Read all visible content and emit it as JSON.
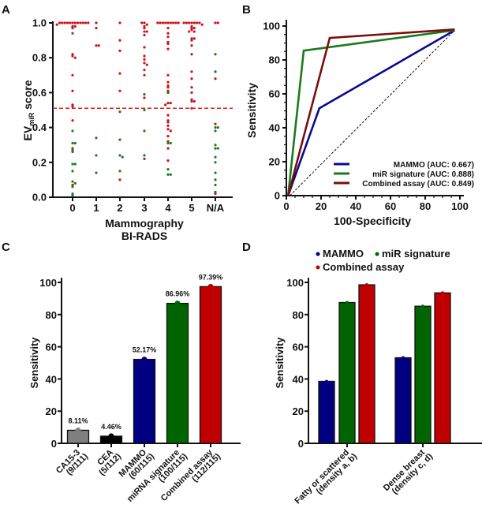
{
  "chart_data": [
    {
      "panel": "A",
      "type": "scatter",
      "title": "",
      "xlabel": [
        "Mammography",
        "BI-RADS"
      ],
      "ylabel_main": "EV",
      "ylabel_sub": "miR",
      "ylabel_tail": " score",
      "categories": [
        "0",
        "1",
        "2",
        "3",
        "4",
        "5",
        "N/A"
      ],
      "yticks": [
        "0.0",
        "0.2",
        "0.4",
        "0.6",
        "0.8",
        "1.0"
      ],
      "ylim": [
        0,
        1
      ],
      "threshold": 0.51,
      "colors": {
        "red": "#c8141c",
        "green": "#1e7a1e",
        "threshold": "#e51c1c"
      },
      "series": [
        {
          "category": "0",
          "red": [
            1,
            1,
            1,
            1,
            1,
            1,
            1,
            1,
            1,
            1,
            1,
            1,
            0.99,
            0.98,
            0.98,
            0.97,
            0.82,
            0.81,
            0.8,
            0.7,
            0.61,
            0.53,
            0.52,
            0.44,
            0.28,
            0.07
          ],
          "green": [
            0.94,
            0.38,
            0.31,
            0.31,
            0.27,
            0.26,
            0.19,
            0.19,
            0.15,
            0.09,
            0.08,
            0.06,
            0.02,
            0.01
          ]
        },
        {
          "category": "1",
          "red": [
            1,
            0.97,
            0.87,
            0.87
          ],
          "green": [
            0.34,
            0.24,
            0.14
          ]
        },
        {
          "category": "2",
          "red": [
            1,
            0.9,
            0.84,
            0.71,
            0.61,
            0.1
          ],
          "green": [
            0.49,
            0.33,
            0.24,
            0.23,
            0.15
          ]
        },
        {
          "category": "3",
          "red": [
            1,
            0.99,
            1,
            0.98,
            0.97,
            0.95,
            0.95,
            0.93,
            0.86,
            0.81,
            0.79,
            0.77,
            0.76,
            0.73,
            0.7,
            0.57,
            0.22
          ],
          "green": [
            0.59,
            0.5,
            0.38,
            0.24
          ]
        },
        {
          "category": "4",
          "red": [
            1,
            1,
            1,
            1,
            1,
            1,
            1,
            1,
            1,
            0.97,
            0.94,
            0.92,
            0.89,
            0.88,
            0.85,
            0.7,
            0.66,
            0.64,
            0.63,
            0.61,
            0.6,
            0.54,
            0.54,
            0.53,
            0.47,
            0.44,
            0.43,
            0.41,
            0.39,
            0.38,
            0.35,
            0.32,
            0.28,
            0.21
          ],
          "green": [
            0.6,
            0.31,
            0.31,
            0.16,
            0.13,
            0.13
          ]
        },
        {
          "category": "5",
          "red": [
            1,
            1,
            1,
            1,
            1,
            1,
            1,
            0.99,
            0.98,
            0.97,
            0.97,
            0.96,
            0.95,
            0.95,
            0.91,
            0.91,
            0.9,
            0.87,
            0.82,
            0.72,
            0.68,
            0.63,
            0.6,
            0.56,
            0.55,
            0.55,
            0.51
          ],
          "green": []
        },
        {
          "category": "N/A",
          "red": [
            1,
            1,
            0.68,
            0.42,
            0.02
          ],
          "green": [
            0.82,
            0.72,
            0.4,
            0.4,
            0.38,
            0.3,
            0.28,
            0.28,
            0.23,
            0.2,
            0.14,
            0.1,
            0.07,
            0.03
          ]
        }
      ]
    },
    {
      "panel": "B",
      "type": "line",
      "xlabel": "100-Specificity",
      "ylabel": "Sensitivity",
      "xlim": [
        0,
        100
      ],
      "ylim": [
        0,
        100
      ],
      "xticks": [
        "0",
        "20",
        "40",
        "60",
        "80",
        "100"
      ],
      "yticks": [
        "0",
        "20",
        "40",
        "60",
        "80",
        "100"
      ],
      "legend_position": "bottom-right",
      "reference_line": {
        "x": [
          2,
          97
        ],
        "y": [
          0,
          97.5
        ]
      },
      "series": [
        {
          "name": "MAMMO (AUC: 0.667)",
          "color": "#0a0a8c",
          "x": [
            1,
            19,
            97
          ],
          "y": [
            0,
            51.5,
            97.5
          ]
        },
        {
          "name": "miR signature (AUC: 0.888)",
          "color": "#1b7a1b",
          "x": [
            1,
            10,
            97
          ],
          "y": [
            0,
            85.5,
            97.5
          ]
        },
        {
          "name": "Combined assay (AUC: 0.849)",
          "color": "#7a0d0d",
          "x": [
            1,
            25,
            97
          ],
          "y": [
            0,
            93,
            98
          ]
        }
      ]
    },
    {
      "panel": "C",
      "type": "bar",
      "ylabel": "Sensitivity",
      "ylim": [
        0,
        100
      ],
      "yticks": [
        "0",
        "20",
        "40",
        "60",
        "80",
        "100"
      ],
      "categories": [
        [
          "CA15-3",
          "(9/111)"
        ],
        [
          "CEA",
          "(5/112)"
        ],
        [
          "MAMMO",
          "(60/115)"
        ],
        [
          "miRNA signature",
          "(100/115)"
        ],
        [
          "Combined assay",
          "(112/115)"
        ]
      ],
      "values": [
        8.11,
        4.46,
        52.17,
        86.96,
        97.39
      ],
      "data_labels": [
        "8.11%",
        "4.46%",
        "52.17%",
        "86.96%",
        "97.39%"
      ],
      "colors": [
        "#7f7f7f",
        "#000000",
        "#000080",
        "#006400",
        "#c00000"
      ]
    },
    {
      "panel": "D",
      "type": "bar",
      "ylabel": "Sensitivity",
      "ylim": [
        0,
        100
      ],
      "yticks": [
        "0",
        "20",
        "40",
        "60",
        "80",
        "100"
      ],
      "categories": [
        [
          "Fatty or scattered",
          "(density a, b)"
        ],
        [
          "Dense breast",
          "(density c, d)"
        ]
      ],
      "legend_position": "top",
      "series": [
        {
          "name": "MAMMO",
          "color": "#000080",
          "values": [
            38.5,
            53.2
          ]
        },
        {
          "name": "miR signature",
          "color": "#006400",
          "values": [
            87.5,
            85.2
          ]
        },
        {
          "name": "Combined assay",
          "color": "#c00000",
          "values": [
            98.5,
            93.5
          ]
        }
      ]
    }
  ],
  "panel_labels": [
    "A",
    "B",
    "C",
    "D"
  ]
}
